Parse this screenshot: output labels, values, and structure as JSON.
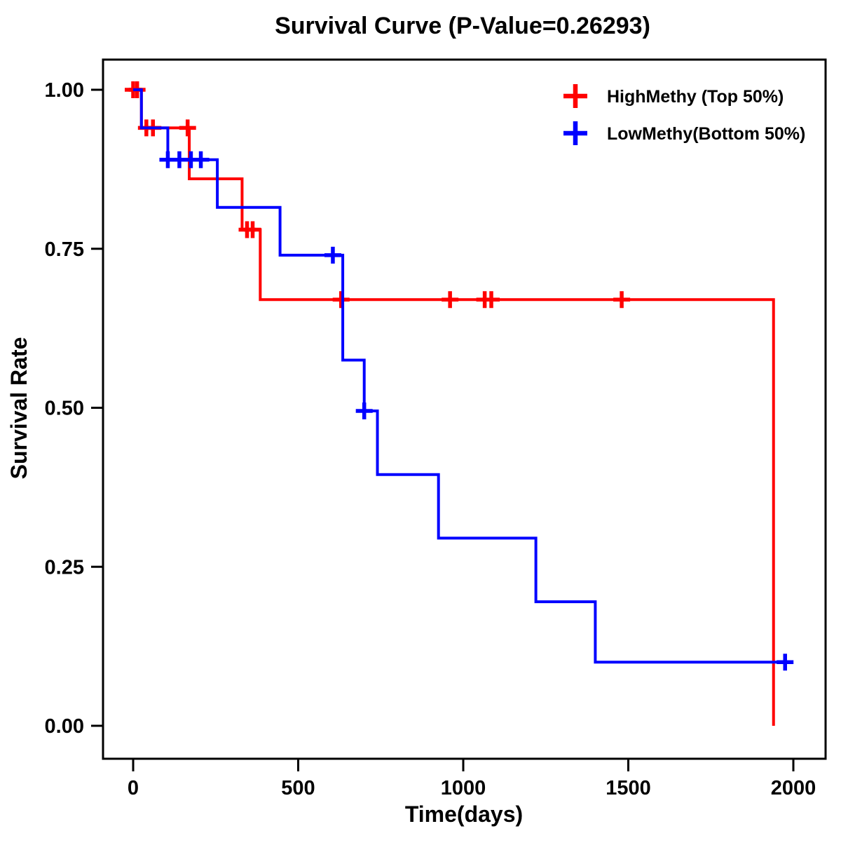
{
  "title": "Survival Curve (P-Value=0.26293)",
  "chart_data": {
    "type": "line",
    "subtype": "kaplan-meier-step-survival",
    "title": "Survival Curve (P-Value=0.26293)",
    "p_value": "0.26293",
    "xlabel": "Time(days)",
    "ylabel": "Survival Rate",
    "xlim": [
      0,
      2000
    ],
    "ylim": [
      0.0,
      1.0
    ],
    "xticks": [
      0,
      500,
      1000,
      1500,
      2000
    ],
    "yticks": [
      "0.00",
      "0.25",
      "0.50",
      "0.75",
      "1.00"
    ],
    "grid": false,
    "legend_position": "top-right",
    "series": [
      {
        "name": "HighMethy (Top 50%)",
        "color": "#FF0000",
        "steps": [
          [
            0,
            1.0
          ],
          [
            25,
            0.94
          ],
          [
            170,
            0.86
          ],
          [
            330,
            0.78
          ],
          [
            385,
            0.67
          ],
          [
            1940,
            0.0
          ]
        ],
        "end_time": 1940,
        "censors": [
          [
            0,
            1.0
          ],
          [
            12,
            1.0
          ],
          [
            40,
            0.94
          ],
          [
            60,
            0.94
          ],
          [
            165,
            0.94
          ],
          [
            345,
            0.78
          ],
          [
            362,
            0.78
          ],
          [
            630,
            0.67
          ],
          [
            960,
            0.67
          ],
          [
            1065,
            0.67
          ],
          [
            1085,
            0.67
          ],
          [
            1480,
            0.67
          ]
        ]
      },
      {
        "name": "LowMethy(Bottom 50%)",
        "color": "#0000FF",
        "steps": [
          [
            0,
            1.0
          ],
          [
            25,
            0.94
          ],
          [
            105,
            0.89
          ],
          [
            255,
            0.815
          ],
          [
            445,
            0.74
          ],
          [
            635,
            0.575
          ],
          [
            700,
            0.495
          ],
          [
            740,
            0.395
          ],
          [
            925,
            0.295
          ],
          [
            1220,
            0.195
          ],
          [
            1400,
            0.1
          ]
        ],
        "end_time": 1975,
        "censors": [
          [
            105,
            0.89
          ],
          [
            140,
            0.89
          ],
          [
            175,
            0.89
          ],
          [
            205,
            0.89
          ],
          [
            605,
            0.74
          ],
          [
            700,
            0.495
          ],
          [
            1975,
            0.1
          ]
        ]
      }
    ]
  },
  "legend": {
    "items": [
      {
        "label": "HighMethy (Top 50%)",
        "color": "#FF0000",
        "marker": "plus"
      },
      {
        "label": "LowMethy(Bottom 50%)",
        "color": "#0000FF",
        "marker": "plus"
      }
    ]
  }
}
